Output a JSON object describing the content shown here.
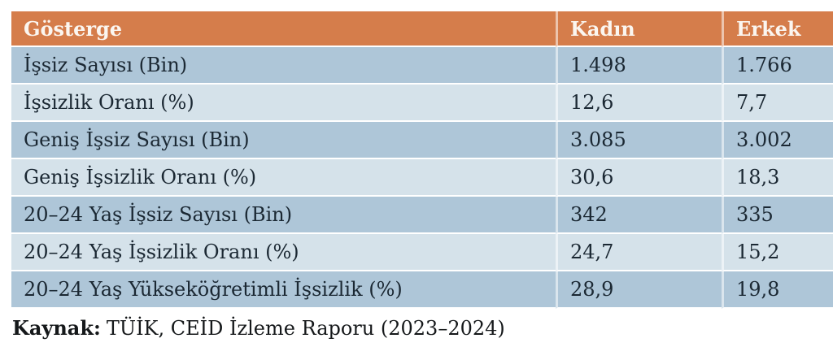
{
  "chart_data": {
    "type": "table",
    "columns": [
      "Gösterge",
      "Kadın",
      "Erkek"
    ],
    "rows": [
      [
        "İşsiz Sayısı (Bin)",
        "1.498",
        "1.766"
      ],
      [
        "İşsizlik Oranı (%)",
        "12,6",
        "7,7"
      ],
      [
        "Geniş İşsiz Sayısı (Bin)",
        "3.085",
        "3.002"
      ],
      [
        "Geniş İşsizlik Oranı (%)",
        "30,6",
        "18,3"
      ],
      [
        "20–24 Yaş İşsiz Sayısı (Bin)",
        "342",
        "335"
      ],
      [
        "20–24 Yaş İşsizlik Oranı (%)",
        "24,7",
        "15,2"
      ],
      [
        "20–24 Yaş Yükseköğretimli İşsizlik (%)",
        "28,9",
        "19,8"
      ]
    ],
    "source_note": "Kaynak: TÜİK, CEİD İzleme Raporu (2023–2024)"
  },
  "footer": {
    "label": "Kaynak:",
    "text": "TÜİK, CEİD İzleme Raporu (2023–2024)"
  },
  "colors": {
    "header_bg": "#d57d4b",
    "header_text": "#fbf6f0",
    "row_odd_bg": "#aec6d8",
    "row_even_bg": "#d5e2ea",
    "body_text": "#1b2833",
    "separator": "#ffffff"
  }
}
